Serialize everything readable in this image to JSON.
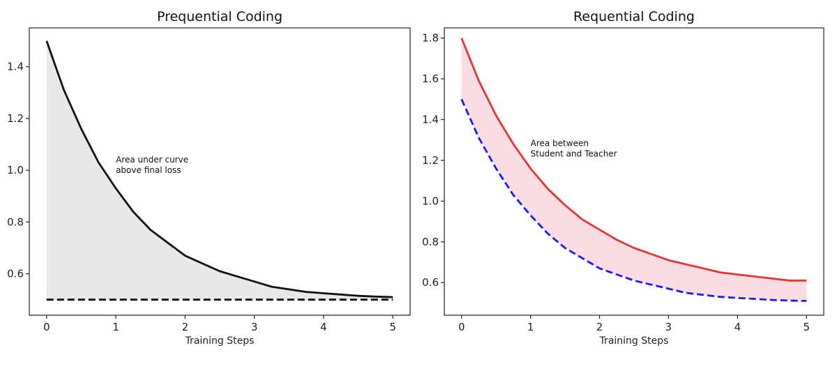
{
  "chart_data": [
    {
      "type": "line",
      "title": "Prequential Coding",
      "xlabel": "Training Steps",
      "ylabel": "",
      "xlim": [
        -0.25,
        5.25
      ],
      "ylim": [
        0.44,
        1.55
      ],
      "xticks": [
        0,
        1,
        2,
        3,
        4,
        5
      ],
      "yticks": [
        0.6,
        0.8,
        1.0,
        1.2,
        1.4
      ],
      "grid": false,
      "series": [
        {
          "style": "solid",
          "color": "#111111",
          "x": [
            0,
            0.25,
            0.5,
            0.75,
            1,
            1.25,
            1.5,
            1.75,
            2,
            2.25,
            2.5,
            2.75,
            3,
            3.25,
            3.5,
            3.75,
            4,
            4.25,
            4.5,
            4.75,
            5
          ],
          "y": [
            1.5,
            1.31,
            1.16,
            1.03,
            0.93,
            0.84,
            0.77,
            0.72,
            0.67,
            0.64,
            0.61,
            0.59,
            0.57,
            0.55,
            0.54,
            0.53,
            0.525,
            0.52,
            0.515,
            0.512,
            0.51
          ]
        },
        {
          "style": "dashed",
          "color": "#111111",
          "x": [
            0,
            5
          ],
          "y": [
            0.5,
            0.5
          ]
        }
      ],
      "fill": {
        "between": [
          0,
          1
        ],
        "color": "#e8e8e8"
      },
      "annotation": {
        "text": [
          "Area under curve",
          "above final loss"
        ],
        "x": 1.0,
        "y": 1.03
      }
    },
    {
      "type": "line",
      "title": "Requential Coding",
      "xlabel": "Training Steps",
      "ylabel": "",
      "xlim": [
        -0.25,
        5.25
      ],
      "ylim": [
        0.44,
        1.85
      ],
      "xticks": [
        0,
        1,
        2,
        3,
        4,
        5
      ],
      "yticks": [
        0.6,
        0.8,
        1.0,
        1.2,
        1.4,
        1.6,
        1.8
      ],
      "grid": false,
      "series": [
        {
          "style": "solid",
          "color": "#e8352f",
          "x": [
            0,
            0.25,
            0.5,
            0.75,
            1,
            1.25,
            1.5,
            1.75,
            2,
            2.25,
            2.5,
            2.75,
            3,
            3.25,
            3.5,
            3.75,
            4,
            4.25,
            4.5,
            4.75,
            5
          ],
          "y": [
            1.8,
            1.59,
            1.42,
            1.28,
            1.16,
            1.06,
            0.98,
            0.91,
            0.86,
            0.81,
            0.77,
            0.74,
            0.71,
            0.69,
            0.67,
            0.65,
            0.64,
            0.63,
            0.62,
            0.61,
            0.61
          ]
        },
        {
          "style": "dashed",
          "color": "#1a1aff",
          "x": [
            0,
            0.25,
            0.5,
            0.75,
            1,
            1.25,
            1.5,
            1.75,
            2,
            2.25,
            2.5,
            2.75,
            3,
            3.25,
            3.5,
            3.75,
            4,
            4.25,
            4.5,
            4.75,
            5
          ],
          "y": [
            1.5,
            1.31,
            1.16,
            1.03,
            0.93,
            0.84,
            0.77,
            0.72,
            0.67,
            0.64,
            0.61,
            0.59,
            0.57,
            0.55,
            0.54,
            0.53,
            0.525,
            0.52,
            0.515,
            0.512,
            0.51
          ]
        }
      ],
      "fill": {
        "between": [
          0,
          1
        ],
        "color": "#f9dde2"
      },
      "annotation": {
        "text": [
          "Area between",
          "Student and Teacher"
        ],
        "x": 1.0,
        "y": 1.27
      }
    }
  ]
}
